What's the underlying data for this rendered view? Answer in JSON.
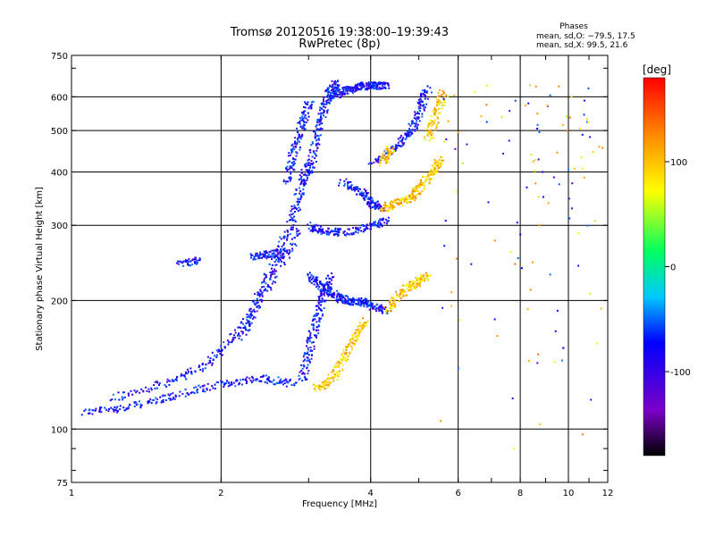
{
  "chart_data": {
    "type": "scatter",
    "title": "Tromsø 20120516 19:38:00–19:39:43",
    "subtitle": "RwPretec (8p)",
    "phases": {
      "heading": "Phases",
      "line1": "mean, sd,O: −79.5, 17.5",
      "line2": "mean, sd,X:  99.5, 21.6"
    },
    "xlabel": "Frequency [MHz]",
    "ylabel": "Stationary phase Virtual Height [km]",
    "x_scale": "log",
    "y_scale": "log",
    "xlim": [
      1,
      12
    ],
    "ylim": [
      75,
      750
    ],
    "x_ticks": [
      1,
      2,
      4,
      6,
      8,
      10,
      12
    ],
    "y_ticks": [
      75,
      100,
      200,
      300,
      400,
      500,
      600,
      750
    ],
    "grid": true,
    "colorbar": {
      "unit": "[deg]",
      "min": -180,
      "max": 180,
      "ticks": [
        100,
        0,
        -100
      ],
      "colors": [
        "#000000",
        "#7b00c8",
        "#0000ff",
        "#00c8ff",
        "#00ff60",
        "#ffff00",
        "#ff8800",
        "#ff0000"
      ]
    },
    "series": [
      {
        "mode": "O",
        "color_value": -79.5,
        "traces": [
          {
            "x": [
              1.05,
              1.3,
              1.6,
              2.0,
              2.4,
              2.8
            ],
            "y": [
              110,
              113,
              120,
              128,
              132,
              128
            ]
          },
          {
            "x": [
              1.2,
              1.6,
              1.9,
              2.2,
              2.5,
              2.9
            ],
            "y": [
              118,
              130,
              145,
              175,
              220,
              300
            ]
          },
          {
            "x": [
              2.2,
              2.4,
              2.6,
              2.8,
              2.9,
              3.0
            ],
            "y": [
              165,
              210,
              260,
              320,
              380,
              420
            ]
          },
          {
            "x": [
              2.7,
              2.8,
              2.9,
              3.0
            ],
            "y": [
              380,
              450,
              520,
              590
            ]
          },
          {
            "x": [
              3.0,
              3.2,
              3.5,
              4.0,
              4.3
            ],
            "y": [
              300,
              292,
              290,
              300,
              310
            ]
          },
          {
            "x": [
              3.0,
              3.1,
              3.2,
              3.3,
              3.4
            ],
            "y": [
              400,
              480,
              560,
              620,
              650
            ]
          },
          {
            "x": [
              3.3,
              3.5,
              3.7,
              3.9
            ],
            "y": [
              600,
              620,
              630,
              640
            ]
          },
          {
            "x": [
              3.5,
              3.8,
              4.0,
              4.2
            ],
            "y": [
              380,
              360,
              340,
              330
            ]
          },
          {
            "x": [
              3.0,
              3.2,
              3.4,
              3.6,
              3.8,
              4.0,
              4.3
            ],
            "y": [
              230,
              215,
              205,
              200,
              200,
              195,
              190
            ]
          },
          {
            "x": [
              2.9,
              3.0,
              3.1,
              3.2,
              3.3
            ],
            "y": [
              130,
              155,
              180,
              205,
              230
            ]
          },
          {
            "x": [
              1.65,
              1.8
            ],
            "y": [
              245,
              250
            ]
          },
          {
            "x": [
              2.3,
              2.5,
              2.7
            ],
            "y": [
              255,
              258,
              260
            ]
          },
          {
            "x": [
              4.0,
              4.5,
              4.8,
              5.0,
              5.2
            ],
            "y": [
              420,
              460,
              500,
              560,
              630
            ]
          },
          {
            "x": [
              3.9,
              4.1,
              4.3
            ],
            "y": [
              640,
              640,
              640
            ]
          }
        ]
      },
      {
        "mode": "X",
        "color_value": 99.5,
        "traces": [
          {
            "x": [
              3.1,
              3.3,
              3.5,
              3.7,
              3.9
            ],
            "y": [
              125,
              130,
              145,
              165,
              180
            ]
          },
          {
            "x": [
              4.2,
              4.5,
              4.8,
              5.0,
              5.3,
              5.5
            ],
            "y": [
              330,
              340,
              350,
              370,
              400,
              430
            ]
          },
          {
            "x": [
              4.3,
              4.6,
              4.9,
              5.2
            ],
            "y": [
              190,
              210,
              220,
              230
            ]
          },
          {
            "x": [
              5.2,
              5.4,
              5.6
            ],
            "y": [
              480,
              550,
              620
            ]
          },
          {
            "x": [
              4.2,
              4.4
            ],
            "y": [
              420,
              460
            ]
          }
        ]
      }
    ]
  }
}
